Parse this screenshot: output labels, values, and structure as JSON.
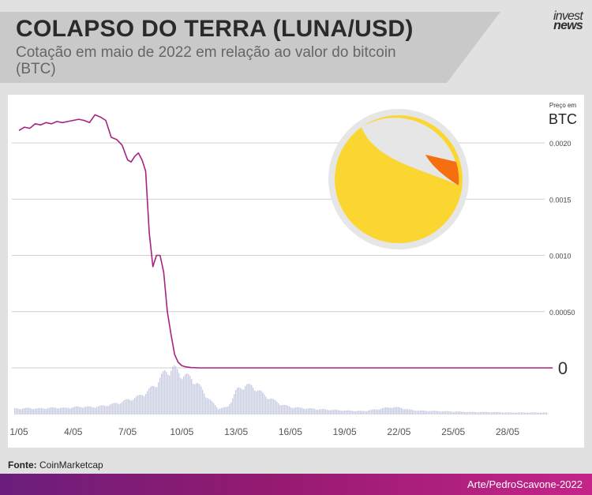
{
  "header": {
    "title": "COLAPSO DO TERRA (LUNA/USD)",
    "subtitle": "Cotação em maio de 2022 em relação ao valor do bitcoin (BTC)",
    "brand_line1": "invest",
    "brand_line2": "news"
  },
  "chart_data": {
    "type": "line",
    "title": "COLAPSO DO TERRA (LUNA/USD)",
    "ylabel": "Preço em BTC",
    "unit_caption": "Preço em",
    "unit": "BTC",
    "x_ticks": [
      "1/05",
      "4/05",
      "7/05",
      "10/05",
      "13/05",
      "16/05",
      "19/05",
      "22/05",
      "25/05",
      "28/05"
    ],
    "x_range_days": [
      1,
      31
    ],
    "ylim": [
      0,
      0.0023
    ],
    "y_ticks": [
      {
        "value": 0,
        "label": "0"
      },
      {
        "value": 0.0005,
        "label": "0.00050"
      },
      {
        "value": 0.001,
        "label": "0.0010"
      },
      {
        "value": 0.0015,
        "label": "0.0015"
      },
      {
        "value": 0.002,
        "label": "0.0020"
      }
    ],
    "grid": true,
    "series": [
      {
        "color": "#a8227f",
        "x": [
          1.0,
          1.3,
          1.6,
          1.9,
          2.2,
          2.5,
          2.8,
          3.1,
          3.4,
          3.7,
          4.0,
          4.3,
          4.6,
          4.9,
          5.2,
          5.5,
          5.8,
          6.1,
          6.4,
          6.7,
          7.0,
          7.2,
          7.4,
          7.6,
          7.8,
          8.0,
          8.2,
          8.4,
          8.6,
          8.8,
          9.0,
          9.2,
          9.4,
          9.6,
          9.8,
          10.0,
          10.2,
          10.5,
          11.0,
          12.0,
          16.0,
          20.0,
          24.0,
          28.0,
          30.5
        ],
        "y": [
          0.00211,
          0.00214,
          0.00213,
          0.00217,
          0.00216,
          0.00218,
          0.00217,
          0.00219,
          0.00218,
          0.00219,
          0.0022,
          0.00221,
          0.0022,
          0.00218,
          0.00225,
          0.00223,
          0.0022,
          0.00205,
          0.00203,
          0.00198,
          0.00185,
          0.00183,
          0.00188,
          0.00191,
          0.00185,
          0.00175,
          0.0012,
          0.0009,
          0.001,
          0.001,
          0.00085,
          0.0005,
          0.0003,
          0.00012,
          5e-05,
          2e-05,
          1e-05,
          3e-06,
          0.0,
          0.0,
          0.0,
          0.0,
          0.0,
          0.0,
          0.0
        ]
      }
    ],
    "volume": {
      "color": "#c8cde2",
      "x": [
        1.0,
        1.5,
        2.0,
        2.5,
        3.0,
        3.5,
        4.0,
        4.5,
        5.0,
        5.5,
        6.0,
        6.5,
        7.0,
        7.5,
        8.0,
        8.5,
        9.0,
        9.5,
        10.0,
        10.5,
        11.0,
        11.5,
        12.0,
        12.5,
        13.0,
        13.5,
        14.0,
        14.5,
        15.0,
        15.5,
        16.0,
        17.0,
        18.0,
        19.0,
        20.0,
        21.0,
        21.5,
        22.0,
        22.5,
        23.0,
        24.0,
        25.0,
        26.0,
        27.0,
        28.0,
        29.0,
        30.0,
        30.5
      ],
      "values": [
        0.12,
        0.13,
        0.12,
        0.13,
        0.14,
        0.13,
        0.15,
        0.16,
        0.15,
        0.17,
        0.2,
        0.24,
        0.3,
        0.35,
        0.45,
        0.6,
        0.85,
        0.95,
        0.8,
        0.75,
        0.55,
        0.3,
        0.12,
        0.15,
        0.5,
        0.6,
        0.55,
        0.4,
        0.3,
        0.2,
        0.15,
        0.12,
        0.1,
        0.08,
        0.07,
        0.12,
        0.15,
        0.14,
        0.1,
        0.08,
        0.07,
        0.06,
        0.05,
        0.05,
        0.04,
        0.04,
        0.04,
        0.03
      ]
    },
    "legend": "none"
  },
  "source": {
    "label": "Fonte:",
    "text": "CoinMarketcap"
  },
  "credit": "Arte/PedroScavone-2022",
  "colors": {
    "line": "#a8227f",
    "logo_yellow": "#fbd631",
    "logo_orange": "#f56f10",
    "logo_ring": "#e6e6e6",
    "gridline": "#cfcfcf"
  },
  "logo": {
    "name": "terra-luna-logo"
  }
}
